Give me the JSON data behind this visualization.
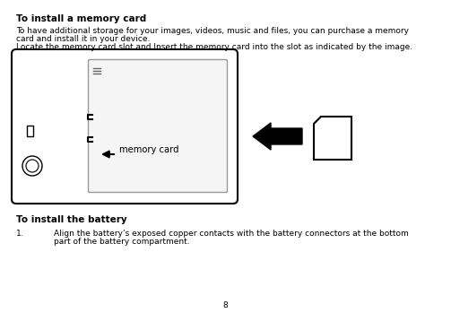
{
  "bg_color": "#ffffff",
  "heading1": "To install a memory card",
  "para1_line1": "To have additional storage for your images, videos, music and files, you can purchase a memory",
  "para1_line2": "card and install it in your device.",
  "para1_line3": "Locate the memory card slot and Insert the memory card into the slot as indicated by the image.",
  "heading2": "To install the battery",
  "para2_num": "1.",
  "para2_line1": "Align the battery’s exposed copper contacts with the battery connectors at the bottom",
  "para2_line2": "part of the battery compartment.",
  "page_num": "8",
  "memory_card_label": "memory card",
  "text_color": "#000000",
  "font_size_heading": 7.5,
  "font_size_body": 6.5
}
